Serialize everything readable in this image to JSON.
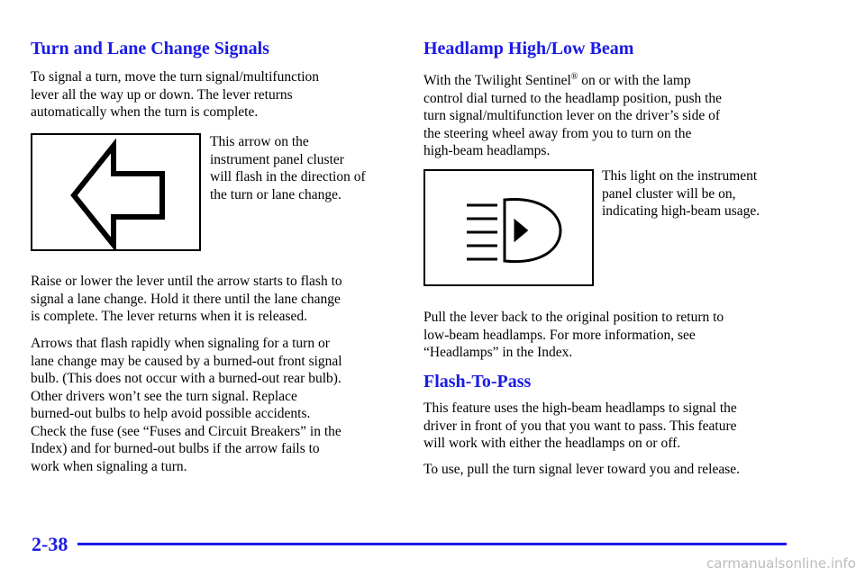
{
  "left": {
    "heading": "Turn and Lane Change Signals",
    "intro": [
      "To signal a turn, move the turn signal/multifunction",
      "lever all the way up or down. The lever returns",
      "automatically when the turn is complete."
    ],
    "caption": [
      "This arrow on the",
      "instrument panel cluster",
      "will flash in the direction of",
      "the turn or lane change."
    ],
    "para2": [
      "Raise or lower the lever until the arrow starts to flash to",
      "signal a lane change. Hold it there until the lane change",
      "is complete. The lever returns when it is released."
    ],
    "para3": [
      "Arrows that flash rapidly when signaling for a turn or",
      "lane change may be caused by a burned-out front signal",
      "bulb. (This does not occur with a burned-out rear bulb).",
      "Other drivers won’t see the turn signal. Replace",
      "burned-out bulbs to help avoid possible accidents.",
      "Check the fuse (see “Fuses and Circuit Breakers” in the",
      "Index) and for burned-out bulbs if the arrow fails to",
      "work when signaling a turn."
    ]
  },
  "right": {
    "heading": "Headlamp High/Low Beam",
    "intro_first": {
      "before": "With the Twilight Sentinel",
      "mark": "®",
      "after": " on or with the lamp"
    },
    "intro": [
      "control dial turned to the headlamp position, push the",
      "turn signal/multifunction lever on the driver’s side of",
      "the steering wheel away from you to turn on the",
      "high-beam headlamps."
    ],
    "caption": [
      "This light on the instrument",
      "panel cluster will be on,",
      "indicating high-beam usage."
    ],
    "para2": [
      "Pull the lever back to the original position to return to",
      "low-beam headlamps. For more information, see",
      "“Headlamps” in the Index."
    ],
    "heading2": "Flash-To-Pass",
    "para3": [
      "This feature uses the high-beam headlamps to signal the",
      "driver in front of you that you want to pass. This feature",
      "will work with either the headlamps on or off."
    ],
    "para4": [
      "To use, pull the turn signal lever toward you and release."
    ]
  },
  "footer": {
    "page": "2-38",
    "watermark": "carmanualsonline.info"
  }
}
